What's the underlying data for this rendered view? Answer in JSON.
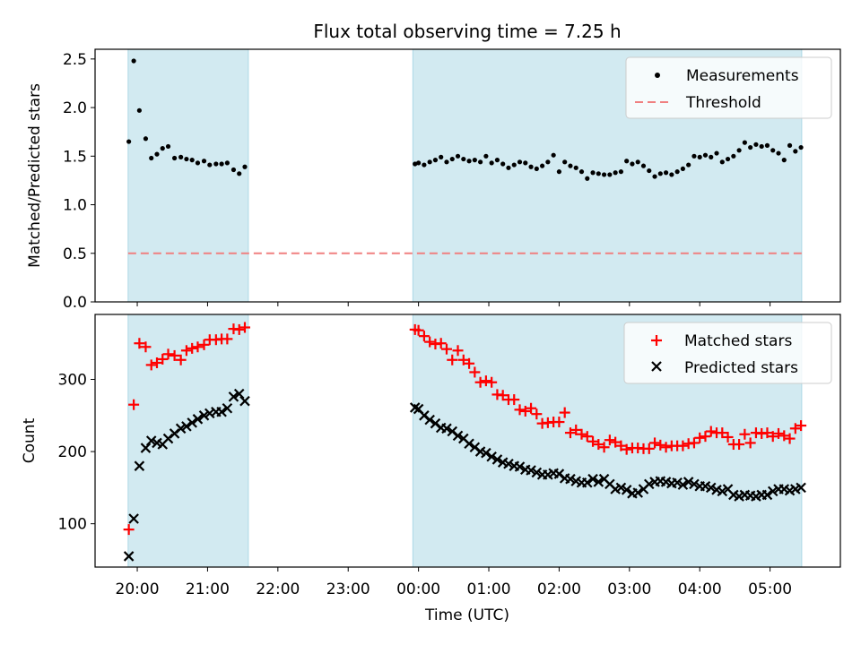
{
  "title": "Flux total observing time = 7.25 h",
  "colors": {
    "shade": "#add8e6",
    "threshold": "#f08080",
    "matched": "#ff0000",
    "predicted": "#000000",
    "measure": "#000000"
  },
  "chart_data": [
    {
      "type": "scatter",
      "ylabel": "Matched/Predicted stars",
      "ylim": [
        0,
        2.6
      ],
      "yticks": [
        "0.0",
        "0.5",
        "1.0",
        "1.5",
        "2.0",
        "2.5"
      ],
      "xlim": [
        -0.6,
        10.0
      ],
      "shaded_intervals": [
        [
          -0.13,
          1.58
        ],
        [
          3.92,
          9.45
        ]
      ],
      "threshold": 0.5,
      "legend": {
        "position": "top-right",
        "entries": [
          "Measurements",
          "Threshold"
        ]
      },
      "series": [
        {
          "name": "Measurements",
          "x": [
            -0.12,
            -0.05,
            0.03,
            0.12,
            0.2,
            0.28,
            0.36,
            0.44,
            0.53,
            0.62,
            0.7,
            0.78,
            0.86,
            0.95,
            1.03,
            1.12,
            1.2,
            1.28,
            1.37,
            1.45,
            1.53,
            3.95,
            4.0,
            4.08,
            4.16,
            4.24,
            4.32,
            4.4,
            4.48,
            4.56,
            4.64,
            4.72,
            4.8,
            4.88,
            4.96,
            5.04,
            5.12,
            5.2,
            5.28,
            5.36,
            5.44,
            5.52,
            5.6,
            5.68,
            5.76,
            5.84,
            5.92,
            6.0,
            6.08,
            6.16,
            6.24,
            6.32,
            6.4,
            6.48,
            6.56,
            6.64,
            6.72,
            6.8,
            6.88,
            6.96,
            7.04,
            7.12,
            7.2,
            7.28,
            7.36,
            7.44,
            7.52,
            7.6,
            7.68,
            7.76,
            7.84,
            7.92,
            8.0,
            8.08,
            8.16,
            8.24,
            8.32,
            8.4,
            8.48,
            8.56,
            8.64,
            8.72,
            8.8,
            8.88,
            8.96,
            9.04,
            9.12,
            9.2,
            9.28,
            9.36,
            9.44
          ],
          "y": [
            1.65,
            2.48,
            1.97,
            1.68,
            1.48,
            1.52,
            1.58,
            1.6,
            1.48,
            1.49,
            1.47,
            1.46,
            1.43,
            1.45,
            1.41,
            1.42,
            1.42,
            1.43,
            1.36,
            1.32,
            1.39,
            1.42,
            1.43,
            1.41,
            1.44,
            1.46,
            1.49,
            1.44,
            1.47,
            1.5,
            1.47,
            1.45,
            1.46,
            1.44,
            1.5,
            1.43,
            1.46,
            1.42,
            1.38,
            1.41,
            1.44,
            1.43,
            1.39,
            1.37,
            1.4,
            1.44,
            1.51,
            1.34,
            1.44,
            1.4,
            1.38,
            1.34,
            1.27,
            1.33,
            1.32,
            1.31,
            1.31,
            1.33,
            1.34,
            1.45,
            1.42,
            1.44,
            1.4,
            1.35,
            1.29,
            1.32,
            1.33,
            1.31,
            1.34,
            1.37,
            1.41,
            1.5,
            1.49,
            1.51,
            1.49,
            1.53,
            1.44,
            1.47,
            1.5,
            1.56,
            1.64,
            1.59,
            1.62,
            1.6,
            1.61,
            1.56,
            1.53,
            1.46,
            1.61,
            1.55,
            1.59
          ]
        }
      ]
    },
    {
      "type": "scatter",
      "ylabel": "Count",
      "xlabel": "Time (UTC)",
      "ylim": [
        40,
        390
      ],
      "yticks": [
        "100",
        "200",
        "300"
      ],
      "xlim": [
        -0.6,
        10.0
      ],
      "xticks": [
        "20:00",
        "21:00",
        "22:00",
        "23:00",
        "00:00",
        "01:00",
        "02:00",
        "03:00",
        "04:00",
        "05:00"
      ],
      "shaded_intervals": [
        [
          -0.13,
          1.58
        ],
        [
          3.92,
          9.45
        ]
      ],
      "legend": {
        "position": "top-right",
        "entries": [
          "Matched stars",
          "Predicted stars"
        ]
      },
      "series": [
        {
          "name": "Matched stars",
          "x": [
            -0.12,
            -0.05,
            0.03,
            0.12,
            0.2,
            0.28,
            0.36,
            0.44,
            0.53,
            0.62,
            0.7,
            0.78,
            0.86,
            0.95,
            1.03,
            1.12,
            1.2,
            1.28,
            1.37,
            1.45,
            1.53,
            3.95,
            4.0,
            4.08,
            4.16,
            4.24,
            4.32,
            4.4,
            4.48,
            4.56,
            4.64,
            4.72,
            4.8,
            4.88,
            4.96,
            5.04,
            5.12,
            5.2,
            5.28,
            5.36,
            5.44,
            5.52,
            5.6,
            5.68,
            5.76,
            5.84,
            5.92,
            6.0,
            6.08,
            6.16,
            6.24,
            6.32,
            6.4,
            6.48,
            6.56,
            6.64,
            6.72,
            6.8,
            6.88,
            6.96,
            7.04,
            7.12,
            7.2,
            7.28,
            7.36,
            7.44,
            7.52,
            7.6,
            7.68,
            7.76,
            7.84,
            7.92,
            8.0,
            8.08,
            8.16,
            8.24,
            8.32,
            8.4,
            8.48,
            8.56,
            8.64,
            8.72,
            8.8,
            8.88,
            8.96,
            9.04,
            9.12,
            9.2,
            9.28,
            9.36,
            9.44
          ],
          "y": [
            92,
            265,
            350,
            345,
            320,
            323,
            328,
            335,
            333,
            327,
            340,
            343,
            345,
            348,
            355,
            355,
            356,
            356,
            370,
            369,
            372,
            369,
            368,
            360,
            352,
            349,
            350,
            342,
            327,
            340,
            327,
            322,
            310,
            296,
            298,
            296,
            279,
            278,
            272,
            272,
            258,
            256,
            260,
            252,
            239,
            240,
            241,
            241,
            254,
            226,
            230,
            224,
            221,
            214,
            210,
            206,
            216,
            213,
            208,
            203,
            205,
            205,
            204,
            204,
            212,
            209,
            206,
            208,
            208,
            208,
            211,
            212,
            219,
            221,
            228,
            226,
            226,
            220,
            210,
            210,
            224,
            212,
            226,
            225,
            226,
            221,
            225,
            222,
            218,
            232,
            236
          ]
        },
        {
          "name": "Predicted stars",
          "x": [
            -0.12,
            -0.05,
            0.03,
            0.12,
            0.2,
            0.28,
            0.36,
            0.44,
            0.53,
            0.62,
            0.7,
            0.78,
            0.86,
            0.95,
            1.03,
            1.12,
            1.2,
            1.28,
            1.37,
            1.45,
            1.53,
            3.95,
            4.0,
            4.08,
            4.16,
            4.24,
            4.32,
            4.4,
            4.48,
            4.56,
            4.64,
            4.72,
            4.8,
            4.88,
            4.96,
            5.04,
            5.12,
            5.2,
            5.28,
            5.36,
            5.44,
            5.52,
            5.6,
            5.68,
            5.76,
            5.84,
            5.92,
            6.0,
            6.08,
            6.16,
            6.24,
            6.32,
            6.4,
            6.48,
            6.56,
            6.64,
            6.72,
            6.8,
            6.88,
            6.96,
            7.04,
            7.12,
            7.2,
            7.28,
            7.36,
            7.44,
            7.52,
            7.6,
            7.68,
            7.76,
            7.84,
            7.92,
            8.0,
            8.08,
            8.16,
            8.24,
            8.32,
            8.4,
            8.48,
            8.56,
            8.64,
            8.72,
            8.8,
            8.88,
            8.96,
            9.04,
            9.12,
            9.2,
            9.28,
            9.36,
            9.44
          ],
          "y": [
            55,
            107,
            180,
            205,
            215,
            212,
            210,
            218,
            225,
            232,
            235,
            240,
            245,
            250,
            253,
            255,
            255,
            260,
            276,
            280,
            270,
            261,
            259,
            250,
            244,
            239,
            233,
            232,
            228,
            222,
            218,
            211,
            206,
            200,
            198,
            193,
            189,
            185,
            183,
            180,
            179,
            175,
            174,
            171,
            168,
            168,
            170,
            169,
            163,
            162,
            159,
            157,
            157,
            162,
            158,
            162,
            155,
            148,
            150,
            147,
            142,
            143,
            148,
            155,
            158,
            159,
            158,
            156,
            157,
            154,
            158,
            155,
            152,
            152,
            150,
            147,
            145,
            148,
            140,
            138,
            140,
            139,
            138,
            140,
            140,
            145,
            148,
            148,
            146,
            148,
            150
          ]
        }
      ]
    }
  ]
}
